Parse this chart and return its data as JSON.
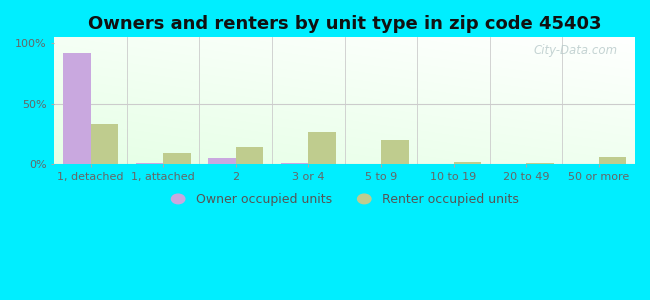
{
  "title": "Owners and renters by unit type in zip code 45403",
  "categories": [
    "1, detached",
    "1, attached",
    "2",
    "3 or 4",
    "5 to 9",
    "10 to 19",
    "20 to 49",
    "50 or more"
  ],
  "owner_values": [
    92,
    1,
    5,
    1,
    0,
    0,
    0,
    0
  ],
  "renter_values": [
    33,
    9,
    14,
    27,
    20,
    2,
    1,
    6
  ],
  "owner_color": "#c9a8df",
  "renter_color": "#bfcc8e",
  "background_outer": "#00eeff",
  "ylabel_ticks": [
    "0%",
    "50%",
    "100%"
  ],
  "ytick_values": [
    0,
    50,
    100
  ],
  "ylim": [
    0,
    105
  ],
  "bar_width": 0.38,
  "legend_owner": "Owner occupied units",
  "legend_renter": "Renter occupied units",
  "title_fontsize": 13,
  "tick_fontsize": 8,
  "legend_fontsize": 9,
  "watermark": "City-Data.com"
}
